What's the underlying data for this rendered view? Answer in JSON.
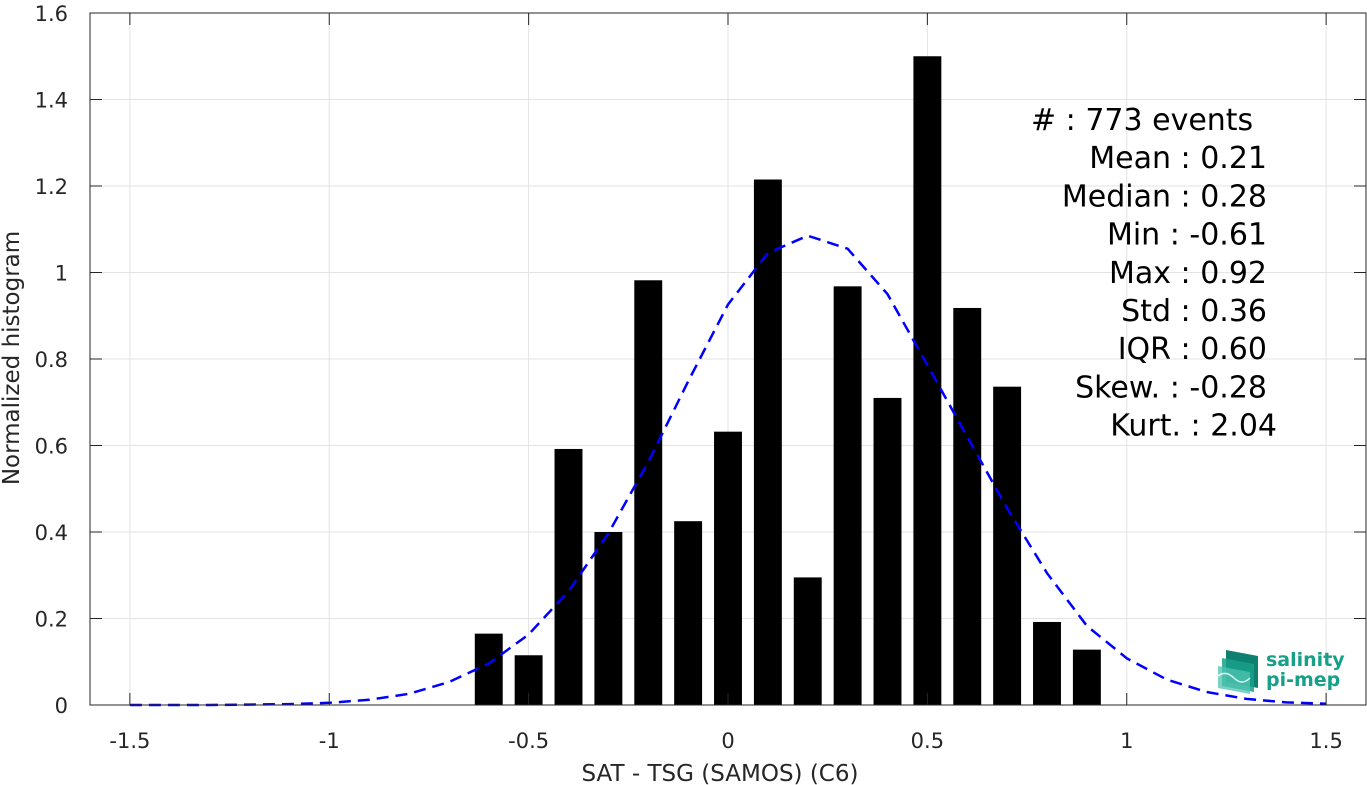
{
  "chart_data": {
    "type": "bar",
    "xlabel": "SAT - TSG (SAMOS) (C6)",
    "ylabel": "Normalized histogram",
    "xlim": [
      -1.6,
      1.6
    ],
    "ylim": [
      0,
      1.6
    ],
    "xticks": [
      -1.5,
      -1,
      -0.5,
      0,
      0.5,
      1,
      1.5
    ],
    "xtick_labels": [
      "-1.5",
      "-1",
      "-0.5",
      "0",
      "0.5",
      "1",
      "1.5"
    ],
    "yticks": [
      0,
      0.2,
      0.4,
      0.6,
      0.8,
      1,
      1.2,
      1.4,
      1.6
    ],
    "ytick_labels": [
      "0",
      "0.2",
      "0.4",
      "0.6",
      "0.8",
      "1",
      "1.2",
      "1.4",
      "1.6"
    ],
    "grid": true,
    "bars": [
      {
        "x": -0.6,
        "y": 0.165
      },
      {
        "x": -0.5,
        "y": 0.115
      },
      {
        "x": -0.4,
        "y": 0.592
      },
      {
        "x": -0.3,
        "y": 0.4
      },
      {
        "x": -0.2,
        "y": 0.982
      },
      {
        "x": -0.1,
        "y": 0.425
      },
      {
        "x": 0.0,
        "y": 0.632
      },
      {
        "x": 0.1,
        "y": 1.215
      },
      {
        "x": 0.2,
        "y": 0.295
      },
      {
        "x": 0.3,
        "y": 0.968
      },
      {
        "x": 0.4,
        "y": 0.71
      },
      {
        "x": 0.5,
        "y": 1.5
      },
      {
        "x": 0.6,
        "y": 0.918
      },
      {
        "x": 0.7,
        "y": 0.736
      },
      {
        "x": 0.8,
        "y": 0.192
      },
      {
        "x": 0.9,
        "y": 0.128
      }
    ],
    "bar_width": 0.07,
    "bar_color": "#000000",
    "fit_curve": {
      "style": "dashed",
      "color": "#0000ff",
      "points": [
        [
          -1.5,
          0.0
        ],
        [
          -1.4,
          0.0
        ],
        [
          -1.3,
          0.0
        ],
        [
          -1.2,
          0.001
        ],
        [
          -1.1,
          0.002
        ],
        [
          -1.0,
          0.005
        ],
        [
          -0.9,
          0.012
        ],
        [
          -0.8,
          0.026
        ],
        [
          -0.7,
          0.053
        ],
        [
          -0.6,
          0.096
        ],
        [
          -0.5,
          0.163
        ],
        [
          -0.4,
          0.263
        ],
        [
          -0.3,
          0.397
        ],
        [
          -0.2,
          0.562
        ],
        [
          -0.1,
          0.748
        ],
        [
          0.0,
          0.926
        ],
        [
          0.1,
          1.045
        ],
        [
          0.2,
          1.085
        ],
        [
          0.3,
          1.055
        ],
        [
          0.4,
          0.95
        ],
        [
          0.5,
          0.786
        ],
        [
          0.6,
          0.62
        ],
        [
          0.7,
          0.455
        ],
        [
          0.8,
          0.305
        ],
        [
          0.9,
          0.183
        ],
        [
          1.0,
          0.108
        ],
        [
          1.1,
          0.059
        ],
        [
          1.2,
          0.03
        ],
        [
          1.3,
          0.014
        ],
        [
          1.4,
          0.006
        ],
        [
          1.5,
          0.003
        ]
      ]
    },
    "stats": [
      {
        "text": "#  : 773 events",
        "anchor": "start",
        "col": 0
      },
      {
        "text": "Mean : 0.21",
        "anchor": "end",
        "col": 1
      },
      {
        "text": "Median : 0.28",
        "anchor": "end",
        "col": 1
      },
      {
        "text": "Min : -0.61",
        "anchor": "end",
        "col": 1
      },
      {
        "text": "Max : 0.92",
        "anchor": "end",
        "col": 1
      },
      {
        "text": "Std : 0.36",
        "anchor": "end",
        "col": 1
      },
      {
        "text": "IQR : 0.60",
        "anchor": "end",
        "col": 1
      },
      {
        "text": "Skew. : -0.28",
        "anchor": "end",
        "col": 1
      },
      {
        "text": "Kurt. : 2.04",
        "anchor": "end",
        "col": 2
      }
    ]
  },
  "logo": {
    "line1": "salinity",
    "line2": "pi-mep",
    "color": "#16a08a"
  }
}
